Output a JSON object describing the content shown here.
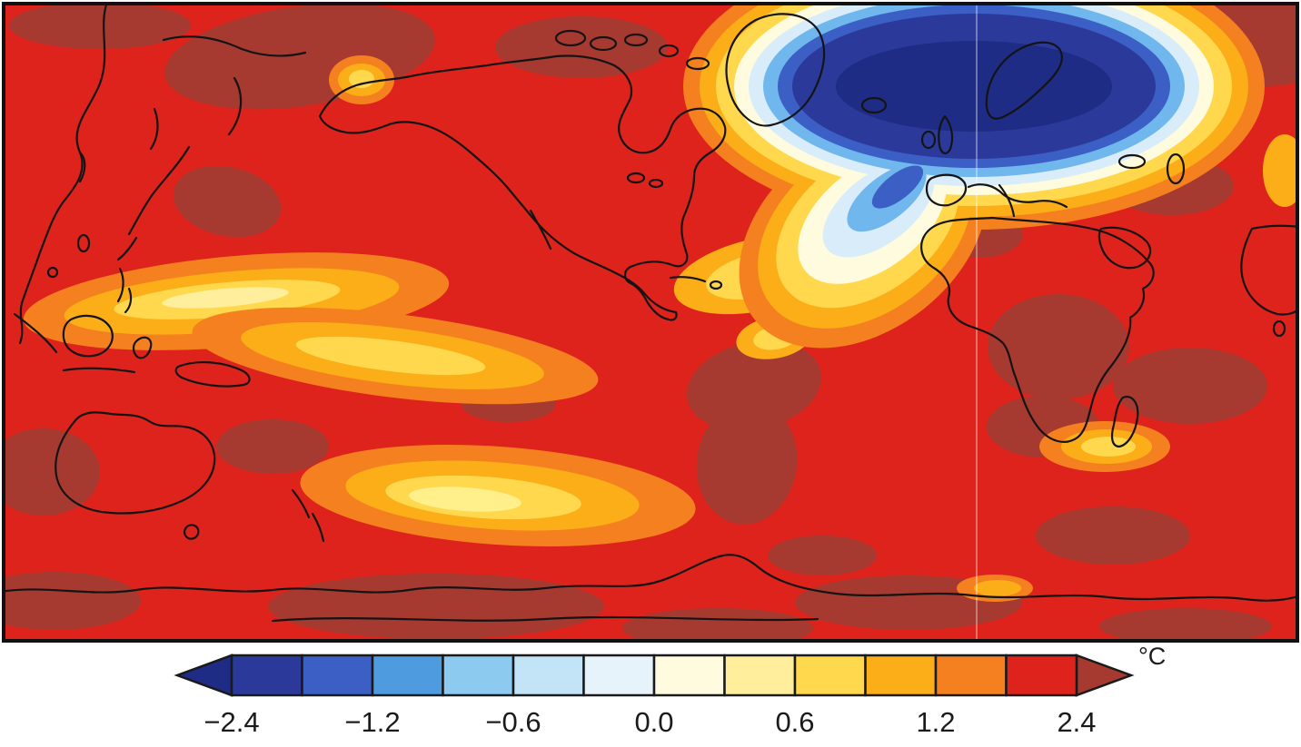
{
  "figure": {
    "description": "Global surface temperature anomaly filled-contour world map with horizontal color scale",
    "units_label": "°C"
  },
  "chart_data": {
    "type": "heatmap",
    "projection": "world map, Pacific/Americas centered, black coastline outlines",
    "title": "",
    "units": "°C",
    "colorbar": {
      "orientation": "horizontal",
      "tick_labels": [
        "−2.4",
        "−1.2",
        "−0.6",
        "0.0",
        "0.6",
        "1.2",
        "2.4"
      ],
      "tick_values": [
        -2.4,
        -1.2,
        -0.6,
        0.0,
        0.6,
        1.2,
        2.4
      ],
      "level_boundaries": [
        -2.4,
        -1.8,
        -1.2,
        -0.9,
        -0.6,
        -0.3,
        0.0,
        0.3,
        0.6,
        0.9,
        1.2,
        1.8,
        2.4
      ],
      "segment_colors": [
        "#2B3A9A",
        "#3C5FC6",
        "#4E9CDF",
        "#8CCBEF",
        "#C3E3F7",
        "#E7F3FB",
        "#FFFBDF",
        "#FFEF9C",
        "#FFD84D",
        "#FBAE17",
        "#F5801F",
        "#DE231C"
      ],
      "arrow_left_color": "#1F2C85",
      "arrow_right_color": "#A63A30",
      "outline_color": "#1a1a1a",
      "units_label": "°C"
    },
    "map_features": [
      {
        "name": "north-atlantic-cooling-blob",
        "approx_value": "below −2.4 °C",
        "region": "subpolar North Atlantic between Greenland, Iceland and Scandinavia, fringed by light blue / white / yellow rings extending southwest into the central Atlantic"
      },
      {
        "name": "background-warming",
        "approx_value": "+1.8 to +2.4 °C",
        "region": "most continents and oceans shown in red"
      },
      {
        "name": "strongest-warming",
        "approx_value": "above +2.4 °C",
        "region": "Arctic/Siberia, Amazon and southern South America, central and southern Africa, parts of Southern Ocean and Antarctica (dark red patches)"
      },
      {
        "name": "muted-warming-bands",
        "approx_value": "+0.3 to +1.2 °C",
        "region": "equatorial and southern Pacific bands, Caribbean/subtropical Atlantic, Gulf of Alaska spot, southwest Indian Ocean spot (orange/yellow)"
      }
    ]
  },
  "colors": {
    "map_background_red": "#DE231C",
    "dark_red": "#A63A30",
    "orange": "#F5801F",
    "amber": "#FBAE17",
    "gold": "#FFD84D",
    "pale_yellow": "#FFEF9C",
    "cream": "#FFFBDF",
    "pale_blue": "#D9ECF9",
    "sky_blue": "#6FB7EC",
    "royal_blue": "#3C5FC6",
    "navy": "#2B3A9A",
    "deep_navy": "#1F2C85",
    "outline": "#1a1a1a"
  }
}
